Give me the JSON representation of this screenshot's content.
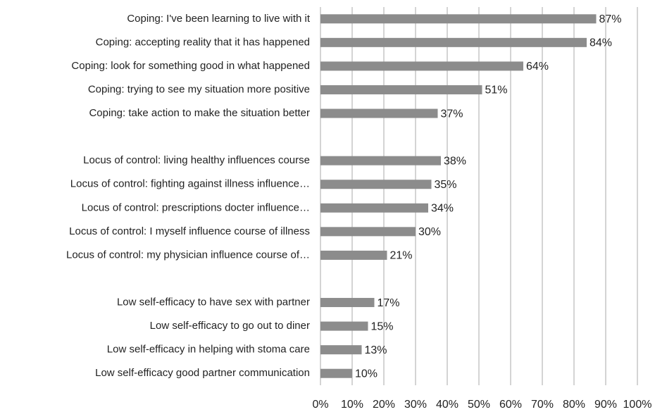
{
  "chart_data": {
    "type": "hbar",
    "categories": [
      "Coping: I've been learning to live with it",
      "Coping: accepting reality that it has happened",
      "Coping: look for something good in what happened",
      "Coping: trying to see my situation more positive",
      "Coping: take action to make the situation better",
      null,
      "Locus of control: living healthy influences course",
      "Locus of control: fighting against illness influence…",
      "Locus of control: prescriptions docter influence…",
      "Locus of control: I myself influence course of illness",
      "Locus of control: my physician influence course of…",
      null,
      "Low self-efficacy to have sex with partner",
      "Low self-efficacy to go out to diner",
      "Low self-efficacy in helping with stoma care",
      "Low self-efficacy good partner communication"
    ],
    "values": [
      87,
      84,
      64,
      51,
      37,
      null,
      38,
      35,
      34,
      30,
      21,
      null,
      17,
      15,
      13,
      10
    ],
    "value_labels": [
      "87%",
      "84%",
      "64%",
      "51%",
      "37%",
      null,
      "38%",
      "35%",
      "34%",
      "30%",
      "21%",
      null,
      "17%",
      "15%",
      "13%",
      "10%"
    ],
    "color": "#8c8c8c",
    "xlim": [
      0,
      100
    ],
    "xticks": [
      {
        "value": 0,
        "label": "0%"
      },
      {
        "value": 10,
        "label": "10%"
      },
      {
        "value": 20,
        "label": "20%"
      },
      {
        "value": 30,
        "label": "30%"
      },
      {
        "value": 40,
        "label": "40%"
      },
      {
        "value": 50,
        "label": "50%"
      },
      {
        "value": 60,
        "label": "60%"
      },
      {
        "value": 70,
        "label": "70%"
      },
      {
        "value": 80,
        "label": "80%"
      },
      {
        "value": 90,
        "label": "90%"
      },
      {
        "value": 100,
        "label": "100%"
      }
    ],
    "grid": true
  }
}
